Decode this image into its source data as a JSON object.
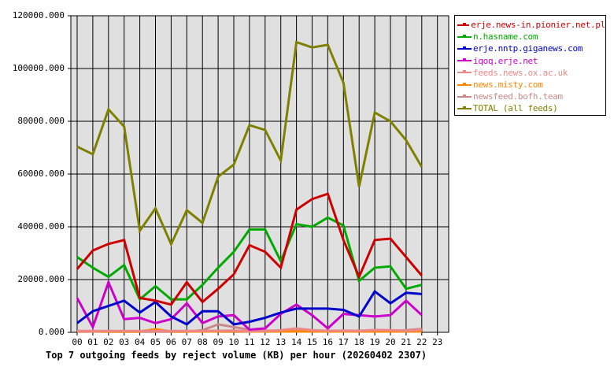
{
  "chart_data": {
    "type": "line",
    "title": "Top 7 outgoing feeds by reject volume (KB) per hour (20260402 2307)",
    "xlabel": "",
    "ylabel": "",
    "ylim": [
      0,
      120000
    ],
    "grid": true,
    "legend_position": "right",
    "categories": [
      "00",
      "01",
      "02",
      "03",
      "04",
      "05",
      "06",
      "07",
      "08",
      "09",
      "10",
      "11",
      "12",
      "13",
      "14",
      "15",
      "16",
      "17",
      "18",
      "19",
      "20",
      "21",
      "22",
      "23"
    ],
    "yticks": [
      "0.000",
      "20000.000",
      "40000.000",
      "60000.000",
      "80000.000",
      "100000.000",
      "120000.000"
    ],
    "series": [
      {
        "name": "erje.news-in.pionier.net.pl",
        "color": "#cc0000",
        "values": [
          24000,
          31000,
          33500,
          35000,
          13000,
          12000,
          10500,
          19000,
          11500,
          16500,
          22000,
          33000,
          30500,
          24500,
          46500,
          50500,
          52500,
          35000,
          21000,
          35000,
          35500,
          28500,
          21500
        ]
      },
      {
        "name": "n.hasname.com",
        "color": "#00aa00",
        "values": [
          28500,
          24500,
          21000,
          25500,
          12500,
          17500,
          12500,
          12500,
          18000,
          24500,
          30500,
          39000,
          39000,
          27000,
          41000,
          40000,
          43500,
          40500,
          19500,
          24500,
          25000,
          16500,
          18000
        ]
      },
      {
        "name": "erje.nntp.giganews.com",
        "color": "#0000cc",
        "values": [
          3500,
          8000,
          10000,
          12000,
          7500,
          11500,
          6000,
          3000,
          8000,
          8000,
          3000,
          4000,
          5500,
          7500,
          9000,
          9000,
          9000,
          8500,
          6000,
          15500,
          11000,
          15000,
          14500
        ]
      },
      {
        "name": "iqoq.erje.net",
        "color": "#cc00cc",
        "values": [
          13000,
          2000,
          19000,
          5000,
          5500,
          3500,
          5000,
          11000,
          3500,
          6000,
          6500,
          1000,
          1500,
          7000,
          10500,
          6500,
          1500,
          7000,
          6500,
          6000,
          6500,
          12000,
          6500
        ]
      },
      {
        "name": "feeds.news.ox.ac.uk",
        "color": "#ee8888",
        "values": [
          500,
          500,
          500,
          500,
          500,
          500,
          500,
          500,
          500,
          600,
          700,
          400,
          500,
          800,
          1500,
          800,
          600,
          700,
          600,
          900,
          800,
          600,
          1000
        ]
      },
      {
        "name": "news.misty.com",
        "color": "#ff8800",
        "values": [
          400,
          400,
          300,
          300,
          300,
          1200,
          300,
          300,
          300,
          300,
          400,
          300,
          300,
          300,
          300,
          300,
          300,
          300,
          300,
          300,
          300,
          300,
          300
        ]
      },
      {
        "name": "newsfeed.bofh.team",
        "color": "#cc8888",
        "values": [
          200,
          300,
          200,
          200,
          200,
          200,
          200,
          200,
          800,
          3000,
          2000,
          1000,
          700,
          500,
          500,
          500,
          500,
          500,
          500,
          600,
          500,
          800,
          1300
        ]
      },
      {
        "name": "TOTAL (all feeds)",
        "color": "#808000",
        "values": [
          70400,
          67500,
          84500,
          78000,
          38500,
          47000,
          33400,
          46300,
          41500,
          59000,
          63600,
          78500,
          76700,
          65100,
          110000,
          108000,
          109000,
          94600,
          55200,
          83300,
          80000,
          72800,
          62700
        ]
      }
    ]
  },
  "legend": {
    "items": [
      {
        "label": "erje.news-in.pionier.net.pl",
        "color": "#cc0000"
      },
      {
        "label": "n.hasname.com",
        "color": "#00aa00"
      },
      {
        "label": "erje.nntp.giganews.com",
        "color": "#0000cc"
      },
      {
        "label": "iqoq.erje.net",
        "color": "#cc00cc"
      },
      {
        "label": "feeds.news.ox.ac.uk",
        "color": "#ee8888"
      },
      {
        "label": "news.misty.com",
        "color": "#ff8800"
      },
      {
        "label": "newsfeed.bofh.team",
        "color": "#cc8888"
      },
      {
        "label": "TOTAL (all feeds)",
        "color": "#808000"
      }
    ]
  },
  "title": "Top 7 outgoing feeds by reject volume (KB) per hour (20260402 2307)"
}
